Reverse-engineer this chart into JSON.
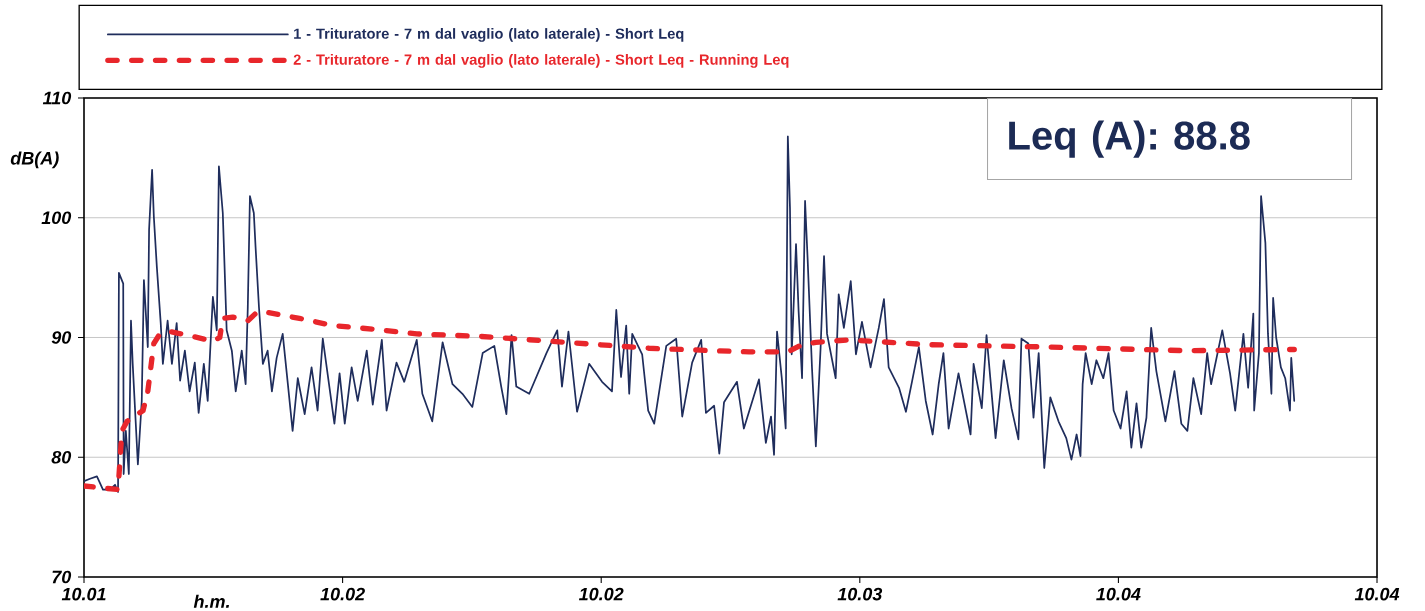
{
  "chart_data": {
    "type": "line",
    "xlabel": "h.m.",
    "ylabel": "dB(A)",
    "legend": "top",
    "grid": "y",
    "xlim": [
      10.012,
      10.042
    ],
    "xticks": [
      {
        "value": 10.012,
        "label": "10.01"
      },
      {
        "value": 10.018,
        "label": "10.02"
      },
      {
        "value": 10.024,
        "label": "10.02"
      },
      {
        "value": 10.03,
        "label": "10.03"
      },
      {
        "value": 10.036,
        "label": "10.04"
      },
      {
        "value": 10.042,
        "label": "10.04"
      }
    ],
    "ylim": [
      70,
      110
    ],
    "yticks": [
      70,
      80,
      90,
      100,
      110
    ],
    "annotations": [
      "Leq (A): 88.8"
    ],
    "series": [
      {
        "name": "1 - Trituratore - 7 m dal vaglio (lato laterale) - Short Leq",
        "color": "#1f2d5c",
        "line_style": "solid",
        "x": [
          10.012,
          10.01214,
          10.0123,
          10.01244,
          10.0126,
          10.01272,
          10.01279,
          10.01281,
          10.01291,
          10.01292,
          10.01297,
          10.01304,
          10.01309,
          10.01313,
          10.01325,
          10.01334,
          10.01339,
          10.01348,
          10.01351,
          10.01358,
          10.01362,
          10.01369,
          10.01378,
          10.01383,
          10.01394,
          10.01404,
          10.01415,
          10.01423,
          10.01434,
          10.01445,
          10.01457,
          10.01466,
          10.01478,
          10.01487,
          10.01499,
          10.01508,
          10.01513,
          10.01522,
          10.01531,
          10.01543,
          10.01552,
          10.01566,
          10.01575,
          10.0158,
          10.01585,
          10.01594,
          10.01598,
          10.01606,
          10.01615,
          10.01626,
          10.01636,
          10.01647,
          10.01661,
          10.01673,
          10.01684,
          10.01696,
          10.01712,
          10.01728,
          10.01742,
          10.01754,
          10.01781,
          10.01793,
          10.01805,
          10.01821,
          10.01835,
          10.01856,
          10.0187,
          10.01891,
          10.01902,
          10.01925,
          10.01943,
          10.01972,
          10.01985,
          10.02008,
          10.02032,
          10.02055,
          10.02078,
          10.02101,
          10.02125,
          10.02152,
          10.02168,
          10.0218,
          10.02192,
          10.02203,
          10.02233,
          10.02273,
          10.02298,
          10.02309,
          10.02324,
          10.02344,
          10.02372,
          10.02402,
          10.02425,
          10.02435,
          10.02446,
          10.02458,
          10.02465,
          10.02472,
          10.02495,
          10.02509,
          10.02523,
          10.02551,
          10.02574,
          10.02588,
          10.02611,
          10.02632,
          10.02643,
          10.02662,
          10.02674,
          10.02685,
          10.02715,
          10.02731,
          10.02766,
          10.02782,
          10.02794,
          10.02801,
          10.02808,
          10.02819,
          10.02828,
          10.02833,
          10.02838,
          10.02842,
          10.02852,
          10.02858,
          10.02866,
          10.02873,
          10.02879,
          10.02889,
          10.02898,
          10.02909,
          10.02917,
          10.02924,
          10.02944,
          10.02951,
          10.02963,
          10.02979,
          10.02991,
          10.03005,
          10.03025,
          10.03044,
          10.03056,
          10.03067,
          10.03091,
          10.03107,
          10.03121,
          10.03137,
          10.03153,
          10.03169,
          10.03183,
          10.03194,
          10.03206,
          10.03229,
          10.03257,
          10.03264,
          10.03283,
          10.03294,
          10.03315,
          10.03334,
          10.03352,
          10.03368,
          10.03375,
          10.03391,
          10.03403,
          10.03415,
          10.03428,
          10.03442,
          10.03461,
          10.03479,
          10.03491,
          10.03503,
          10.03512,
          10.03517,
          10.03524,
          10.03538,
          10.03549,
          10.03565,
          10.03577,
          10.03589,
          10.03605,
          10.03619,
          10.0363,
          10.03642,
          10.03653,
          10.03665,
          10.03676,
          10.03688,
          10.03709,
          10.0373,
          10.03746,
          10.0376,
          10.03774,
          10.03792,
          10.03806,
          10.03815,
          10.03841,
          10.03859,
          10.03871,
          10.0389,
          10.03901,
          10.03913,
          10.03915,
          10.03926,
          10.03931,
          10.03941,
          10.03947,
          10.03955,
          10.03959,
          10.03966,
          10.03977,
          10.03987,
          10.03998,
          10.04001,
          10.04008
        ],
        "values": [
          78.0,
          78.2,
          78.4,
          77.3,
          77.3,
          77.7,
          77.1,
          95.4,
          94.5,
          78.6,
          82.2,
          78.6,
          91.4,
          87.8,
          79.4,
          84.7,
          94.8,
          89.2,
          99.0,
          104.0,
          100.1,
          95.9,
          91.2,
          87.8,
          91.4,
          87.8,
          91.2,
          86.4,
          88.9,
          85.5,
          87.9,
          83.7,
          87.8,
          84.7,
          93.4,
          90.6,
          104.3,
          100.4,
          90.6,
          88.9,
          85.5,
          88.9,
          86.1,
          92.5,
          101.8,
          100.4,
          97.6,
          92.5,
          87.8,
          88.9,
          85.5,
          88.3,
          90.3,
          86.1,
          82.2,
          86.6,
          83.6,
          87.5,
          83.9,
          89.9,
          82.8,
          87.0,
          82.8,
          87.5,
          84.7,
          88.9,
          84.4,
          89.8,
          83.9,
          87.9,
          86.3,
          89.8,
          85.3,
          83.0,
          89.6,
          86.1,
          85.3,
          84.2,
          88.7,
          89.3,
          85.9,
          83.6,
          90.2,
          85.9,
          85.3,
          88.7,
          90.6,
          85.9,
          90.5,
          83.8,
          87.8,
          86.3,
          85.5,
          92.3,
          86.7,
          91.0,
          85.3,
          90.3,
          88.6,
          83.9,
          82.8,
          89.3,
          89.9,
          83.4,
          87.9,
          89.8,
          83.7,
          84.3,
          80.3,
          84.6,
          86.3,
          82.4,
          86.5,
          81.2,
          83.4,
          80.2,
          90.5,
          86.6,
          82.4,
          106.8,
          100.8,
          88.6,
          97.8,
          92.2,
          86.6,
          101.4,
          96.5,
          87.5,
          80.9,
          89.1,
          96.8,
          90.3,
          86.6,
          93.6,
          90.8,
          94.7,
          88.6,
          91.3,
          87.5,
          90.8,
          93.2,
          87.5,
          85.8,
          83.8,
          86.3,
          89.2,
          84.7,
          81.9,
          86.1,
          88.7,
          82.4,
          87.0,
          81.9,
          87.8,
          84.1,
          90.2,
          81.6,
          88.1,
          84.1,
          81.5,
          89.9,
          89.5,
          83.3,
          88.7,
          79.1,
          85.0,
          83.0,
          81.6,
          79.8,
          81.9,
          80.1,
          86.1,
          88.7,
          86.1,
          88.1,
          86.6,
          88.7,
          83.9,
          82.4,
          85.5,
          80.8,
          84.5,
          80.8,
          83.3,
          90.8,
          87.2,
          83.0,
          87.2,
          82.8,
          82.2,
          86.6,
          83.6,
          88.7,
          86.1,
          90.6,
          87.0,
          83.9,
          90.3,
          85.8,
          92.0,
          83.9,
          88.7,
          101.8,
          97.9,
          90.3,
          85.3,
          93.3,
          90.0,
          87.5,
          86.6,
          83.9,
          88.3,
          84.7
        ]
      },
      {
        "name": "2 - Trituratore - 7 m dal vaglio (lato laterale) - Short Leq - Running Leq",
        "color": "#e8262b",
        "line_style": "dashed",
        "x": [
          10.012,
          10.01279,
          10.01288,
          10.013,
          10.01337,
          10.01348,
          10.01362,
          10.01376,
          10.01399,
          10.01439,
          10.01499,
          10.01515,
          10.01522,
          10.01545,
          10.0158,
          10.01601,
          10.01624,
          10.017,
          10.01777,
          10.0187,
          10.01972,
          10.02117,
          10.02279,
          10.02511,
          10.02743,
          10.02833,
          10.02866,
          10.02898,
          10.02975,
          10.0316,
          10.03445,
          10.03755,
          10.04008
        ],
        "values": [
          77.6,
          77.3,
          82.2,
          83.0,
          83.9,
          85.5,
          89.5,
          90.3,
          90.5,
          90.2,
          89.7,
          90.0,
          91.6,
          91.7,
          91.4,
          92.1,
          92.1,
          91.6,
          91.0,
          90.7,
          90.3,
          90.1,
          89.7,
          89.1,
          88.8,
          88.8,
          89.4,
          89.6,
          89.8,
          89.4,
          89.2,
          88.9,
          89.0
        ]
      }
    ]
  }
}
